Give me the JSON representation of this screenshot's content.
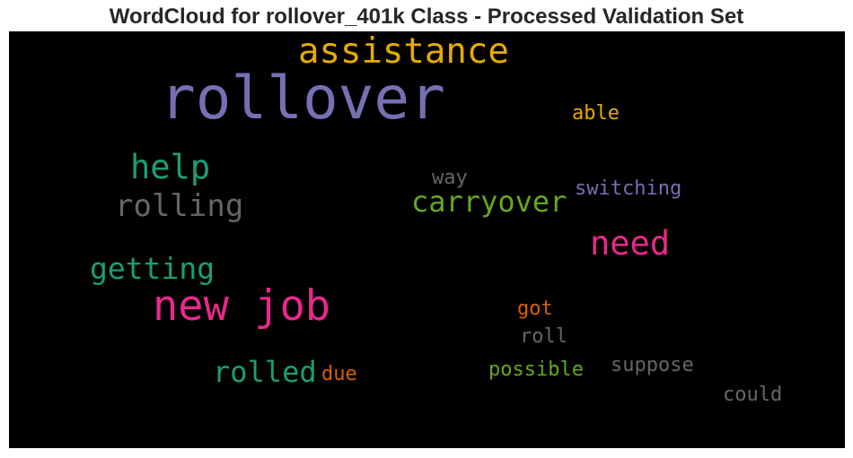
{
  "title": "WordCloud for rollover_401k Class - Processed Validation Set",
  "words": {
    "rollover": {
      "text": "rollover",
      "color": "#7570b3"
    },
    "assistance": {
      "text": "assistance",
      "color": "#e6ab02"
    },
    "help": {
      "text": "help",
      "color": "#1b9e77"
    },
    "rolling": {
      "text": "rolling",
      "color": "#666666"
    },
    "able": {
      "text": "able",
      "color": "#e6ab02"
    },
    "way": {
      "text": "way",
      "color": "#666666"
    },
    "switching": {
      "text": "switching",
      "color": "#7570b3"
    },
    "carryover": {
      "text": "carryover",
      "color": "#66a61e"
    },
    "need": {
      "text": "need",
      "color": "#e7298a"
    },
    "getting": {
      "text": "getting",
      "color": "#1b9e77"
    },
    "new_job": {
      "text": "new job",
      "color": "#e7298a"
    },
    "got": {
      "text": "got",
      "color": "#d95f02"
    },
    "roll": {
      "text": "roll",
      "color": "#666666"
    },
    "rolled": {
      "text": "rolled",
      "color": "#1b9e77"
    },
    "due": {
      "text": "due",
      "color": "#d95f02"
    },
    "possible": {
      "text": "possible",
      "color": "#66a61e"
    },
    "suppose": {
      "text": "suppose",
      "color": "#666666"
    },
    "could": {
      "text": "could",
      "color": "#666666"
    }
  }
}
